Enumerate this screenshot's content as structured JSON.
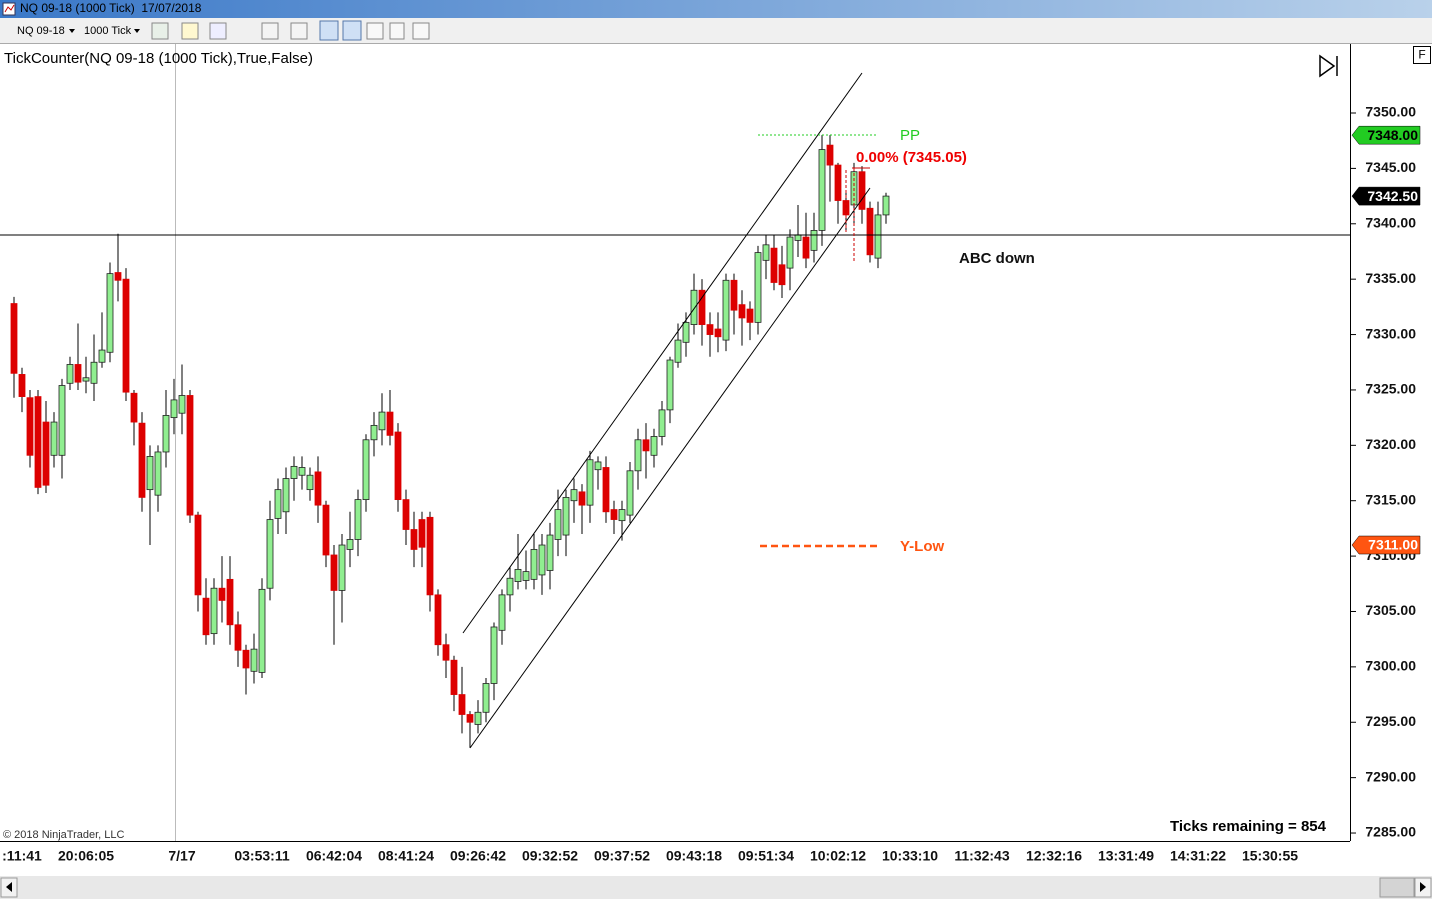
{
  "window": {
    "title": "NQ 09-18 (1000 Tick)  17/07/2018",
    "instrument": "NQ 09-18",
    "interval": "1000 Tick",
    "indicator": "TickCounter(NQ 09-18 (1000 Tick),True,False)",
    "copyright": "© 2018 NinjaTrader, LLC",
    "f_button": "F"
  },
  "chart_data": {
    "type": "candlestick",
    "categories": [
      null,
      ":11:41",
      null,
      null,
      null,
      null,
      null,
      null,
      null,
      "20:06:05",
      null,
      null,
      null,
      null,
      null,
      null,
      null,
      null,
      null,
      null,
      null,
      "7/17",
      null,
      null,
      null,
      null,
      null,
      null,
      null,
      null,
      null,
      "03:53:11",
      null,
      null,
      null,
      null,
      null,
      null,
      null,
      null,
      "06:42:04",
      null,
      null,
      null,
      null,
      null,
      null,
      null,
      null,
      "08:41:24",
      null,
      null,
      null,
      null,
      null,
      null,
      null,
      null,
      "09:26:42",
      null,
      null,
      null,
      null,
      null,
      null,
      null,
      null,
      "09:32:52",
      null,
      null,
      null,
      null,
      null,
      null,
      null,
      null,
      "09:37:52",
      null,
      null,
      null,
      null,
      null,
      null,
      null,
      null,
      "09:43:18",
      null,
      null,
      null,
      null,
      null,
      null,
      null,
      null,
      "09:51:34",
      null,
      null,
      null,
      null,
      null,
      null,
      null,
      null,
      "10:02:12",
      null,
      null,
      null,
      null,
      null,
      null,
      null,
      null,
      "10:33:10",
      null,
      null,
      null,
      null,
      null,
      null,
      null,
      null,
      "11:32:43",
      null,
      null,
      null,
      null,
      null,
      null,
      null,
      null,
      "12:32:16",
      null,
      null,
      null,
      null,
      null,
      null,
      null,
      null,
      "13:31:49",
      null,
      null,
      null,
      null,
      null,
      null,
      null,
      null,
      "14:31:22",
      null,
      null,
      null,
      null,
      null,
      null,
      null,
      null,
      "15:30:55"
    ],
    "open": [
      7332.8,
      7326.4,
      7324.3,
      7324.4,
      7322.1,
      7319.1,
      7319.1,
      7325.6,
      7327.3,
      7325.8,
      7325.6,
      7327.5,
      7328.4,
      7335.6,
      7335,
      7324.7,
      7322,
      7316,
      7315.5,
      7319.4,
      7322.5,
      7322.9,
      7324.5,
      7313.7,
      7306.2,
      7303,
      7307.1,
      7307.9,
      7303.8,
      7301.5,
      7299.6,
      7299.5,
      7307.1,
      7313.4,
      7314,
      7317,
      7317.3,
      7316,
      7317.6,
      7314.6,
      7310.1,
      7306.9,
      7310.6,
      7311.5,
      7315.1,
      7320.5,
      7321.4,
      7323,
      7321.2,
      7315.1,
      7312.4,
      7313.3,
      7313.5,
      7306.5,
      7302,
      7300.6,
      7297.5,
      7295.7,
      7294.8,
      7295.9,
      7298.5,
      7303.3,
      7306.5,
      7307.7,
      7307.8,
      7307.9,
      7308.3,
      7308.7,
      7311.5,
      7311.9,
      7315,
      7315.8,
      7314.6,
      7317.8,
      7318,
      7314.2,
      7313.2,
      7313.7,
      7317.7,
      7320.5,
      7319.1,
      7320.8,
      7323.2,
      7327.5,
      7329.3,
      7330.9,
      7334,
      7330.9,
      7330.5,
      7329.5,
      7334.9,
      7332.7,
      7332.3,
      7331.1,
      7336.7,
      7337.8,
      7336.3,
      7336,
      7338.5,
      7338.8,
      7337.6,
      7339.4,
      7347.1,
      7345.3,
      7342.1,
      7341.7,
      7344.7,
      7341.4,
      7336.9,
      7340.8,
      null,
      null,
      null,
      null,
      null,
      null,
      null,
      null,
      null,
      null,
      null,
      null,
      null,
      null,
      null,
      null,
      null,
      null,
      null,
      null,
      null,
      null,
      null,
      null,
      null,
      null,
      null,
      null,
      null,
      null,
      null,
      null,
      null,
      null,
      null,
      null,
      null,
      null,
      null,
      null,
      null,
      null,
      null,
      null,
      null,
      null,
      null,
      null
    ],
    "high": [
      7333.4,
      7327,
      7325,
      7325,
      7324,
      7323,
      7326,
      7328,
      7331,
      7328,
      7330,
      7332,
      7336.5,
      7339.1,
      7336,
      7325,
      7323,
      7320,
      7320,
      7325,
      7326,
      7327.3,
      7325,
      7314,
      7308,
      7308,
      7310,
      7310,
      7305,
      7302,
      7303,
      7308,
      7315,
      7317,
      7318,
      7319,
      7319,
      7318,
      7319,
      7315,
      7311,
      7312,
      7314,
      7316,
      7321,
      7323,
      7324.7,
      7325,
      7322,
      7316,
      7314,
      7314,
      7314,
      7307,
      7303,
      7301,
      7300,
      7296,
      7297,
      7299,
      7304,
      7307,
      7309,
      7312,
      7310.5,
      7312,
      7312,
      7313,
      7316,
      7316,
      7317,
      7316.5,
      7319.5,
      7319,
      7319,
      7315,
      7315,
      7318.5,
      7321.5,
      7322,
      7321.5,
      7324,
      7328,
      7331,
      7332,
      7335.5,
      7335,
      7332,
      7332,
      7335.5,
      7335.5,
      7334,
      7333,
      7338,
      7339,
      7339,
      7338,
      7339.5,
      7341.7,
      7341,
      7341,
      7348,
      7348,
      7345.5,
      7343,
      7345.5,
      7345.2,
      7342,
      7342,
      7342.8,
      null,
      null,
      null,
      null,
      null,
      null,
      null,
      null,
      null,
      null,
      null,
      null,
      null,
      null,
      null,
      null,
      null,
      null,
      null,
      null,
      null,
      null,
      null,
      null,
      null,
      null,
      null,
      null,
      null,
      null,
      null,
      null,
      null,
      null,
      null,
      null,
      null,
      null,
      null,
      null,
      null,
      null,
      null,
      null,
      null,
      null,
      null,
      null
    ],
    "low": [
      7324.3,
      7323,
      7318,
      7315.6,
      7315.7,
      7318,
      7317,
      7325,
      7325,
      7324.7,
      7324,
      7327,
      7327.5,
      7333,
      7324,
      7320,
      7314,
      7311,
      7314,
      7318,
      7321,
      7321,
      7313,
      7305,
      7302,
      7302,
      7304,
      7302,
      7300,
      7297.5,
      7298.5,
      7299,
      7306,
      7312,
      7312,
      7315,
      7316,
      7315,
      7313,
      7309,
      7302,
      7304,
      7309,
      7310,
      7314,
      7319,
      7320,
      7320,
      7314,
      7311,
      7309,
      7309,
      7305,
      7301,
      7299,
      7296,
      7294,
      7292.7,
      7294,
      7295,
      7297,
      7302,
      7305,
      7307,
      7307,
      7307,
      7306.5,
      7307,
      7310,
      7310,
      7313,
      7312,
      7313,
      7316,
      7313,
      7312,
      7311.4,
      7313,
      7316,
      7317,
      7318,
      7320,
      7322,
      7327,
      7328,
      7330,
      7329,
      7328,
      7328.4,
      7328.5,
      7330,
      7329,
      7329.5,
      7330,
      7335,
      7334,
      7333.3,
      7334,
      7337,
      7336,
      7336.5,
      7338,
      7342,
      7340,
      7339.3,
      7340,
      7340,
      7336.5,
      7336,
      7340,
      null,
      null,
      null,
      null,
      null,
      null,
      null,
      null,
      null,
      null,
      null,
      null,
      null,
      null,
      null,
      null,
      null,
      null,
      null,
      null,
      null,
      null,
      null,
      null,
      null,
      null,
      null,
      null,
      null,
      null,
      null,
      null,
      null,
      null,
      null,
      null,
      null,
      null,
      null,
      null,
      null,
      null,
      null,
      null,
      null,
      null,
      null,
      null
    ],
    "close": [
      7326.5,
      7324.4,
      7319.1,
      7316.2,
      7316.4,
      7322.1,
      7325.4,
      7327.3,
      7325.7,
      7326.1,
      7327.5,
      7328.6,
      7335.5,
      7334.9,
      7324.8,
      7322.1,
      7315.3,
      7319,
      7319.4,
      7322.7,
      7324.1,
      7324.5,
      7313.7,
      7306.5,
      7302.9,
      7307.1,
      7306,
      7303.8,
      7301.5,
      7299.9,
      7301.6,
      7307,
      7313.3,
      7316,
      7317,
      7318.1,
      7318,
      7317.3,
      7314.6,
      7310.1,
      7306.9,
      7311,
      7311.5,
      7315.1,
      7320.5,
      7321.8,
      7323,
      7320.9,
      7315.1,
      7312.4,
      7310.6,
      7310.8,
      7306.5,
      7302,
      7300.6,
      7297.5,
      7295.7,
      7295,
      7295.9,
      7298.5,
      7303.6,
      7306.5,
      7308,
      7308.8,
      7308.6,
      7310.6,
      7311,
      7311.9,
      7314.2,
      7315.3,
      7316,
      7314.6,
      7318.7,
      7318.5,
      7314,
      7313.3,
      7314.2,
      7317.7,
      7320.5,
      7319.5,
      7320.8,
      7323.2,
      7327.7,
      7329.5,
      7331.1,
      7334,
      7330.9,
      7330,
      7329.8,
      7334.9,
      7332.2,
      7331.5,
      7331.1,
      7337.4,
      7338.1,
      7334.7,
      7334.5,
      7338.8,
      7339,
      7336.9,
      7339.4,
      7346.7,
      7345.3,
      7342.1,
      7340.8,
      7344.7,
      7341.3,
      7337.2,
      7340.8,
      7342.5,
      null,
      null,
      null,
      null,
      null,
      null,
      null,
      null,
      null,
      null,
      null,
      null,
      null,
      null,
      null,
      null,
      null,
      null,
      null,
      null,
      null,
      null,
      null,
      null,
      null,
      null,
      null,
      null,
      null,
      null,
      null,
      null,
      null,
      null,
      null,
      null,
      null,
      null,
      null,
      null,
      null,
      null,
      null,
      null,
      null,
      null,
      null,
      null
    ],
    "up_color": "#90ee90",
    "down_color": "#dd0000",
    "ylim": [
      7284.28,
      7356.23
    ],
    "yticks": [
      {
        "value": 7285,
        "label": "7285.00"
      },
      {
        "value": 7290,
        "label": "7290.00"
      },
      {
        "value": 7295,
        "label": "7295.00"
      },
      {
        "value": 7300,
        "label": "7300.00"
      },
      {
        "value": 7305,
        "label": "7305.00"
      },
      {
        "value": 7310,
        "label": "7310.00"
      },
      {
        "value": 7315,
        "label": "7315.00"
      },
      {
        "value": 7320,
        "label": "7320.00"
      },
      {
        "value": 7325,
        "label": "7325.00"
      },
      {
        "value": 7330,
        "label": "7330.00"
      },
      {
        "value": 7335,
        "label": "7335.00"
      },
      {
        "value": 7340,
        "label": "7340.00"
      },
      {
        "value": 7345,
        "label": "7345.00"
      },
      {
        "value": 7350,
        "label": "7350.00"
      }
    ],
    "price_markers": [
      {
        "value": 7348,
        "label": "7348.00",
        "color": "#22cc22",
        "text_color": "#000000"
      },
      {
        "value": 7342.5,
        "label": "7342.50",
        "color": "#000000",
        "text_color": "#ffffff"
      },
      {
        "value": 7311,
        "label": "7311.00",
        "color": "#ff5511",
        "text_color": "#ffffff"
      }
    ],
    "annotations": [
      "PP",
      "0.00% (7345.05)",
      "ABC down",
      "Y-Low"
    ],
    "ticks_remaining": "Ticks remaining = 854"
  }
}
